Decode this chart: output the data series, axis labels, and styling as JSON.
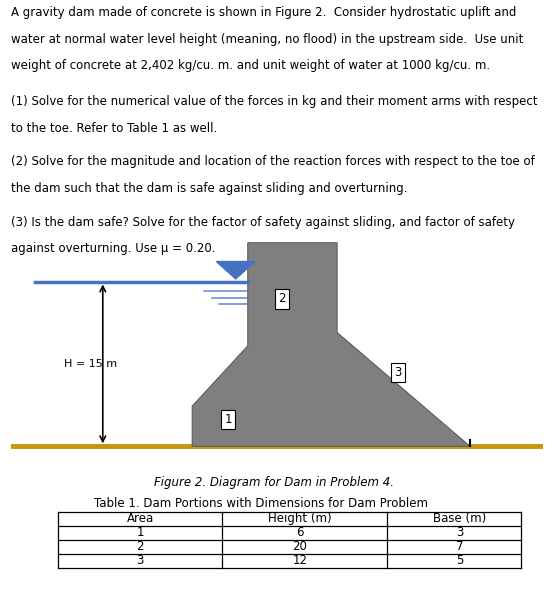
{
  "line1": "A gravity dam made of concrete is shown in Figure 2.  Consider hydrostatic uplift and",
  "line2": "water at normal water level height (meaning, no flood) in the upstream side.  Use unit",
  "line3": "weight of concrete at 2,402 kg/cu. m. and unit weight of water at 1000 kg/cu. m.",
  "para1_l1": "(1) Solve for the numerical value of the forces in kg and their moment arms with respect",
  "para1_l2": "to the toe. Refer to Table 1 as well.",
  "para2_l1": "(2) Solve for the magnitude and location of the reaction forces with respect to the toe of",
  "para2_l2": "the dam such that the dam is safe against sliding and overturning.",
  "para3_l1": "(3) Is the dam safe? Solve for the factor of safety against sliding, and factor of safety",
  "para3_l2": "against overturning. Use μ = 0.20.",
  "fig_caption": "Figure 2. Diagram for Dam in Problem 4.",
  "table_title": "Table 1. Dam Portions with Dimensions for Dam Problem",
  "table_headers": [
    "Area",
    "Height (m)",
    "Base (m)"
  ],
  "table_data": [
    [
      "1",
      "6",
      "3"
    ],
    [
      "2",
      "20",
      "7"
    ],
    [
      "3",
      "12",
      "5"
    ]
  ],
  "H_label": "H = 15 m",
  "dam_color": "#7f7f7f",
  "ground_color": "#c8960c",
  "water_color": "#4472c4",
  "water_line_color": "#4472c4",
  "background": "#ffffff",
  "text_color": "#000000",
  "label1": "1",
  "label2": "2",
  "label3": "3",
  "fontsize_text": 8.5,
  "fontsize_small": 7.5
}
